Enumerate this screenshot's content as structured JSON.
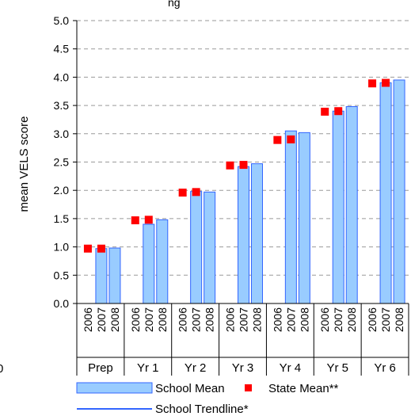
{
  "chart_data": {
    "type": "bar",
    "title_partial": "ng",
    "left_edge_partial": "0",
    "ylabel": "mean VELS score",
    "ylim": [
      0.0,
      5.0
    ],
    "yticks": [
      "0.0",
      "0.5",
      "1.0",
      "1.5",
      "2.0",
      "2.5",
      "3.0",
      "3.5",
      "4.0",
      "4.5",
      "5.0"
    ],
    "grid": "horizontal dashed",
    "groups": [
      "Prep",
      "Yr 1",
      "Yr 2",
      "Yr 3",
      "Yr 4",
      "Yr 5",
      "Yr 6"
    ],
    "years": [
      "2006",
      "2007",
      "2008"
    ],
    "series": [
      {
        "name": "School Mean",
        "color": "#99ccff",
        "values": [
          [
            null,
            0.97,
            0.98
          ],
          [
            null,
            1.4,
            1.48
          ],
          [
            null,
            1.98,
            1.97
          ],
          [
            null,
            2.42,
            2.47
          ],
          [
            null,
            3.05,
            3.02
          ],
          [
            null,
            3.4,
            3.48
          ],
          [
            null,
            3.9,
            3.95
          ]
        ]
      },
      {
        "name": "State Mean**",
        "color": "#ff0000",
        "values": [
          [
            0.97,
            0.97,
            null
          ],
          [
            1.47,
            1.48,
            null
          ],
          [
            1.96,
            1.97,
            null
          ],
          [
            2.44,
            2.45,
            null
          ],
          [
            2.89,
            2.9,
            null
          ],
          [
            3.39,
            3.4,
            null
          ],
          [
            3.89,
            3.9,
            null
          ]
        ]
      },
      {
        "name": "School Trendline*",
        "color": "#3366ff"
      }
    ],
    "legend_position": "bottom"
  }
}
